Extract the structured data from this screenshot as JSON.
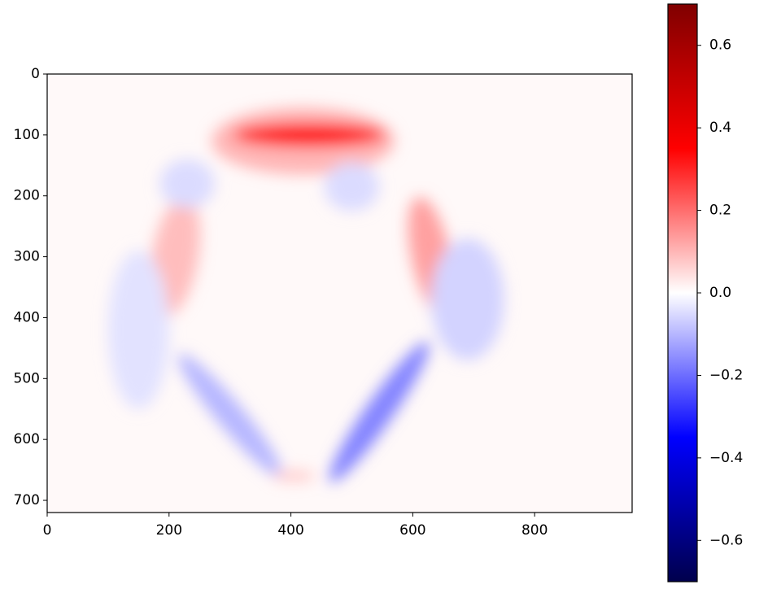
{
  "chart_data": {
    "type": "heatmap",
    "colormap": "seismic",
    "xlim": [
      0,
      960
    ],
    "ylim": [
      720,
      0
    ],
    "xticks": [
      0,
      200,
      400,
      600,
      800
    ],
    "yticks": [
      0,
      100,
      200,
      300,
      400,
      500,
      600,
      700
    ],
    "base_value": 0.008,
    "regions": [
      {
        "cx": 420,
        "cy": 110,
        "rx": 150,
        "ry": 55,
        "angle": 0,
        "value": 0.1
      },
      {
        "cx": 430,
        "cy": 100,
        "rx": 125,
        "ry": 20,
        "angle": 0,
        "value": 0.32
      },
      {
        "cx": 210,
        "cy": 300,
        "rx": 38,
        "ry": 100,
        "angle": 10,
        "value": 0.09
      },
      {
        "cx": 630,
        "cy": 300,
        "rx": 32,
        "ry": 100,
        "angle": -12,
        "value": 0.13
      },
      {
        "cx": 150,
        "cy": 420,
        "rx": 50,
        "ry": 130,
        "angle": 0,
        "value": -0.04
      },
      {
        "cx": 690,
        "cy": 370,
        "rx": 60,
        "ry": 100,
        "angle": 0,
        "value": -0.06
      },
      {
        "cx": 300,
        "cy": 560,
        "rx": 130,
        "ry": 22,
        "angle": 50,
        "value": -0.1
      },
      {
        "cx": 545,
        "cy": 555,
        "rx": 140,
        "ry": 22,
        "angle": -55,
        "value": -0.17
      },
      {
        "cx": 230,
        "cy": 180,
        "rx": 45,
        "ry": 40,
        "angle": 0,
        "value": -0.05
      },
      {
        "cx": 500,
        "cy": 185,
        "rx": 45,
        "ry": 40,
        "angle": 0,
        "value": -0.05
      },
      {
        "cx": 405,
        "cy": 660,
        "rx": 35,
        "ry": 8,
        "angle": 0,
        "value": 0.08
      }
    ],
    "colorbar": {
      "lim": [
        -0.7,
        0.7
      ],
      "ticks": [
        {
          "value": 0.6,
          "label": "0.6"
        },
        {
          "value": 0.4,
          "label": "0.4"
        },
        {
          "value": 0.2,
          "label": "0.2"
        },
        {
          "value": 0,
          "label": "0.0"
        },
        {
          "value": -0.2,
          "label": "−0.2"
        },
        {
          "value": -0.4,
          "label": "−0.4"
        },
        {
          "value": -0.6,
          "label": "−0.6"
        }
      ]
    }
  }
}
